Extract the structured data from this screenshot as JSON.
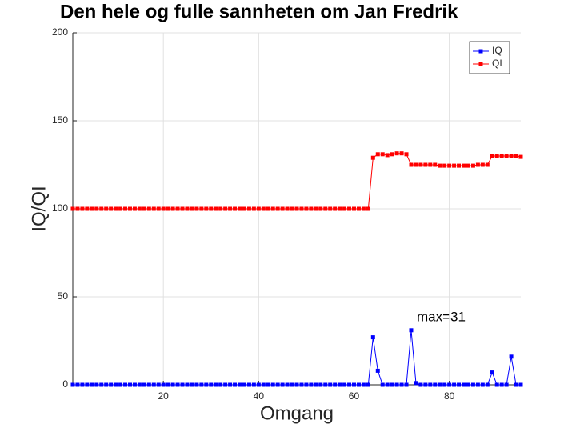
{
  "chart_data": {
    "type": "line",
    "title": "Den hele og fulle sannheten om Jan Fredrik",
    "xlabel": "Omgang",
    "ylabel": "IQ/QI",
    "annotation": "max=31",
    "x": [
      1,
      2,
      3,
      4,
      5,
      6,
      7,
      8,
      9,
      10,
      11,
      12,
      13,
      14,
      15,
      16,
      17,
      18,
      19,
      20,
      21,
      22,
      23,
      24,
      25,
      26,
      27,
      28,
      29,
      30,
      31,
      32,
      33,
      34,
      35,
      36,
      37,
      38,
      39,
      40,
      41,
      42,
      43,
      44,
      45,
      46,
      47,
      48,
      49,
      50,
      51,
      52,
      53,
      54,
      55,
      56,
      57,
      58,
      59,
      60,
      61,
      62,
      63,
      64,
      65,
      66,
      67,
      68,
      69,
      70,
      71,
      72,
      73,
      74,
      75,
      76,
      77,
      78,
      79,
      80,
      81,
      82,
      83,
      84,
      85,
      86,
      87,
      88,
      89,
      90,
      91,
      92,
      93,
      94,
      95
    ],
    "series": [
      {
        "name": "IQ",
        "color": "#0000ff",
        "values": [
          0,
          0,
          0,
          0,
          0,
          0,
          0,
          0,
          0,
          0,
          0,
          0,
          0,
          0,
          0,
          0,
          0,
          0,
          0,
          0,
          0,
          0,
          0,
          0,
          0,
          0,
          0,
          0,
          0,
          0,
          0,
          0,
          0,
          0,
          0,
          0,
          0,
          0,
          0,
          0,
          0,
          0,
          0,
          0,
          0,
          0,
          0,
          0,
          0,
          0,
          0,
          0,
          0,
          0,
          0,
          0,
          0,
          0,
          0,
          0,
          0,
          0,
          0,
          27,
          8,
          0,
          0,
          0,
          0,
          0,
          0,
          31,
          1,
          0,
          0,
          0,
          0,
          0,
          0,
          0,
          0,
          0,
          0,
          0,
          0,
          0,
          0,
          0,
          7,
          0,
          0,
          0,
          16,
          0,
          0
        ]
      },
      {
        "name": "QI",
        "color": "#ff0000",
        "values": [
          100,
          100,
          100,
          100,
          100,
          100,
          100,
          100,
          100,
          100,
          100,
          100,
          100,
          100,
          100,
          100,
          100,
          100,
          100,
          100,
          100,
          100,
          100,
          100,
          100,
          100,
          100,
          100,
          100,
          100,
          100,
          100,
          100,
          100,
          100,
          100,
          100,
          100,
          100,
          100,
          100,
          100,
          100,
          100,
          100,
          100,
          100,
          100,
          100,
          100,
          100,
          100,
          100,
          100,
          100,
          100,
          100,
          100,
          100,
          100,
          100,
          100,
          100,
          129,
          131,
          131,
          130.5,
          131,
          131.5,
          131.5,
          131,
          125,
          125,
          125,
          125,
          125,
          125,
          124.5,
          124.5,
          124.5,
          124.5,
          124.5,
          124.5,
          124.5,
          124.5,
          125,
          125,
          125,
          130,
          130,
          130,
          130,
          130,
          130,
          129.5
        ]
      }
    ],
    "xlim": [
      1,
      95
    ],
    "xticks": [
      20,
      40,
      60,
      80
    ],
    "ylim": [
      0,
      200
    ],
    "yticks": [
      0,
      50,
      100,
      150,
      200
    ],
    "grid": true,
    "legend": "top-right"
  }
}
